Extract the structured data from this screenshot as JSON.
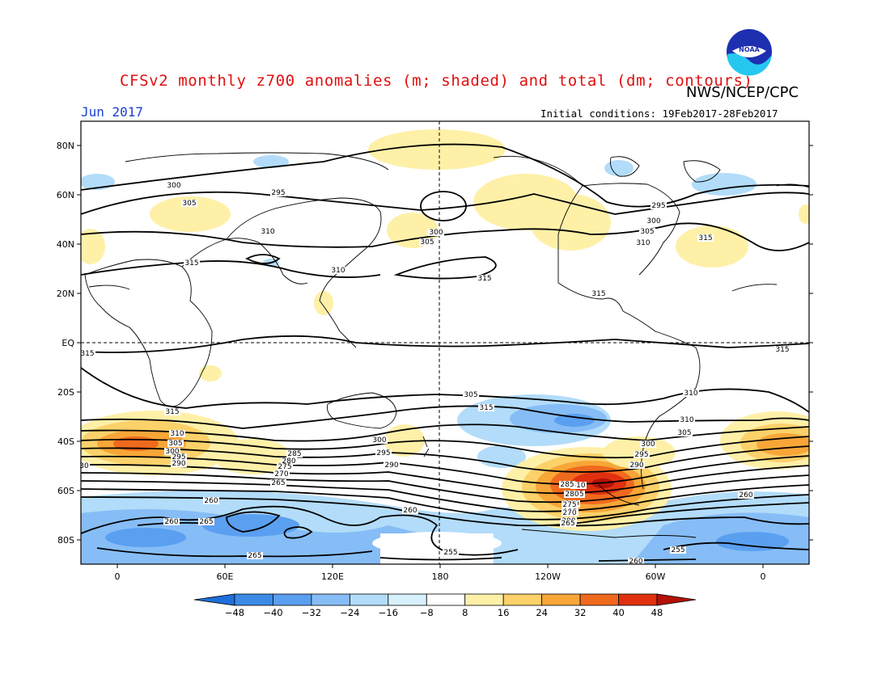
{
  "header": {
    "title": "CFSv2 monthly z700 anomalies (m; shaded) and total (dm; contours)",
    "agency": "NWS/NCEP/CPC",
    "month": "Jun 2017",
    "initial_conditions": "Initial conditions: 19Feb2017-28Feb2017",
    "logo_text": "NOAA"
  },
  "map": {
    "lat_ticks": [
      "80N",
      "60N",
      "40N",
      "20N",
      "EQ",
      "20S",
      "40S",
      "60S",
      "80S"
    ],
    "lon_ticks": [
      "0",
      "60E",
      "120E",
      "180",
      "120W",
      "60W",
      "0"
    ],
    "contour_labels": [
      {
        "text": "300"
      },
      {
        "text": "305"
      },
      {
        "text": "295"
      },
      {
        "text": "310"
      },
      {
        "text": "315"
      },
      {
        "text": "310"
      },
      {
        "text": "300"
      },
      {
        "text": "305"
      },
      {
        "text": "315"
      },
      {
        "text": "295"
      },
      {
        "text": "300"
      },
      {
        "text": "305"
      },
      {
        "text": "310"
      },
      {
        "text": "315"
      },
      {
        "text": "315"
      },
      {
        "text": "315"
      },
      {
        "text": "315"
      },
      {
        "text": "310"
      },
      {
        "text": "305"
      },
      {
        "text": "315"
      },
      {
        "text": "310"
      },
      {
        "text": "305"
      },
      {
        "text": "300"
      },
      {
        "text": "295"
      },
      {
        "text": "290"
      },
      {
        "text": "315"
      },
      {
        "text": "310"
      },
      {
        "text": "305"
      },
      {
        "text": "300"
      },
      {
        "text": "295"
      },
      {
        "text": "290"
      },
      {
        "text": "285"
      },
      {
        "text": "280"
      },
      {
        "text": "275"
      },
      {
        "text": "270"
      },
      {
        "text": "265"
      },
      {
        "text": "300"
      },
      {
        "text": "295"
      },
      {
        "text": "290"
      },
      {
        "text": "310"
      },
      {
        "text": "305"
      },
      {
        "text": "300"
      },
      {
        "text": "295"
      },
      {
        "text": "290"
      },
      {
        "text": "285"
      },
      {
        "text": "280"
      },
      {
        "text": "275"
      },
      {
        "text": "270"
      },
      {
        "text": "265"
      },
      {
        "text": "260"
      },
      {
        "text": "260"
      },
      {
        "text": "265"
      },
      {
        "text": "260"
      },
      {
        "text": "265"
      },
      {
        "text": "255"
      },
      {
        "text": "255"
      },
      {
        "text": "260"
      },
      {
        "text": "260"
      },
      {
        "text": "30"
      }
    ]
  },
  "colorbar": {
    "labels": [
      "−48",
      "−40",
      "−32",
      "−24",
      "−16",
      "−8",
      "8",
      "16",
      "24",
      "32",
      "40",
      "48"
    ],
    "colors": [
      "#1e6fd9",
      "#3c8ae6",
      "#5a9ff0",
      "#86bdf6",
      "#b2dcf9",
      "#d6f1fb",
      "#ffffff",
      "#fff0a8",
      "#fcd16a",
      "#f8a638",
      "#f06a1e",
      "#e0300f",
      "#b31208"
    ]
  }
}
